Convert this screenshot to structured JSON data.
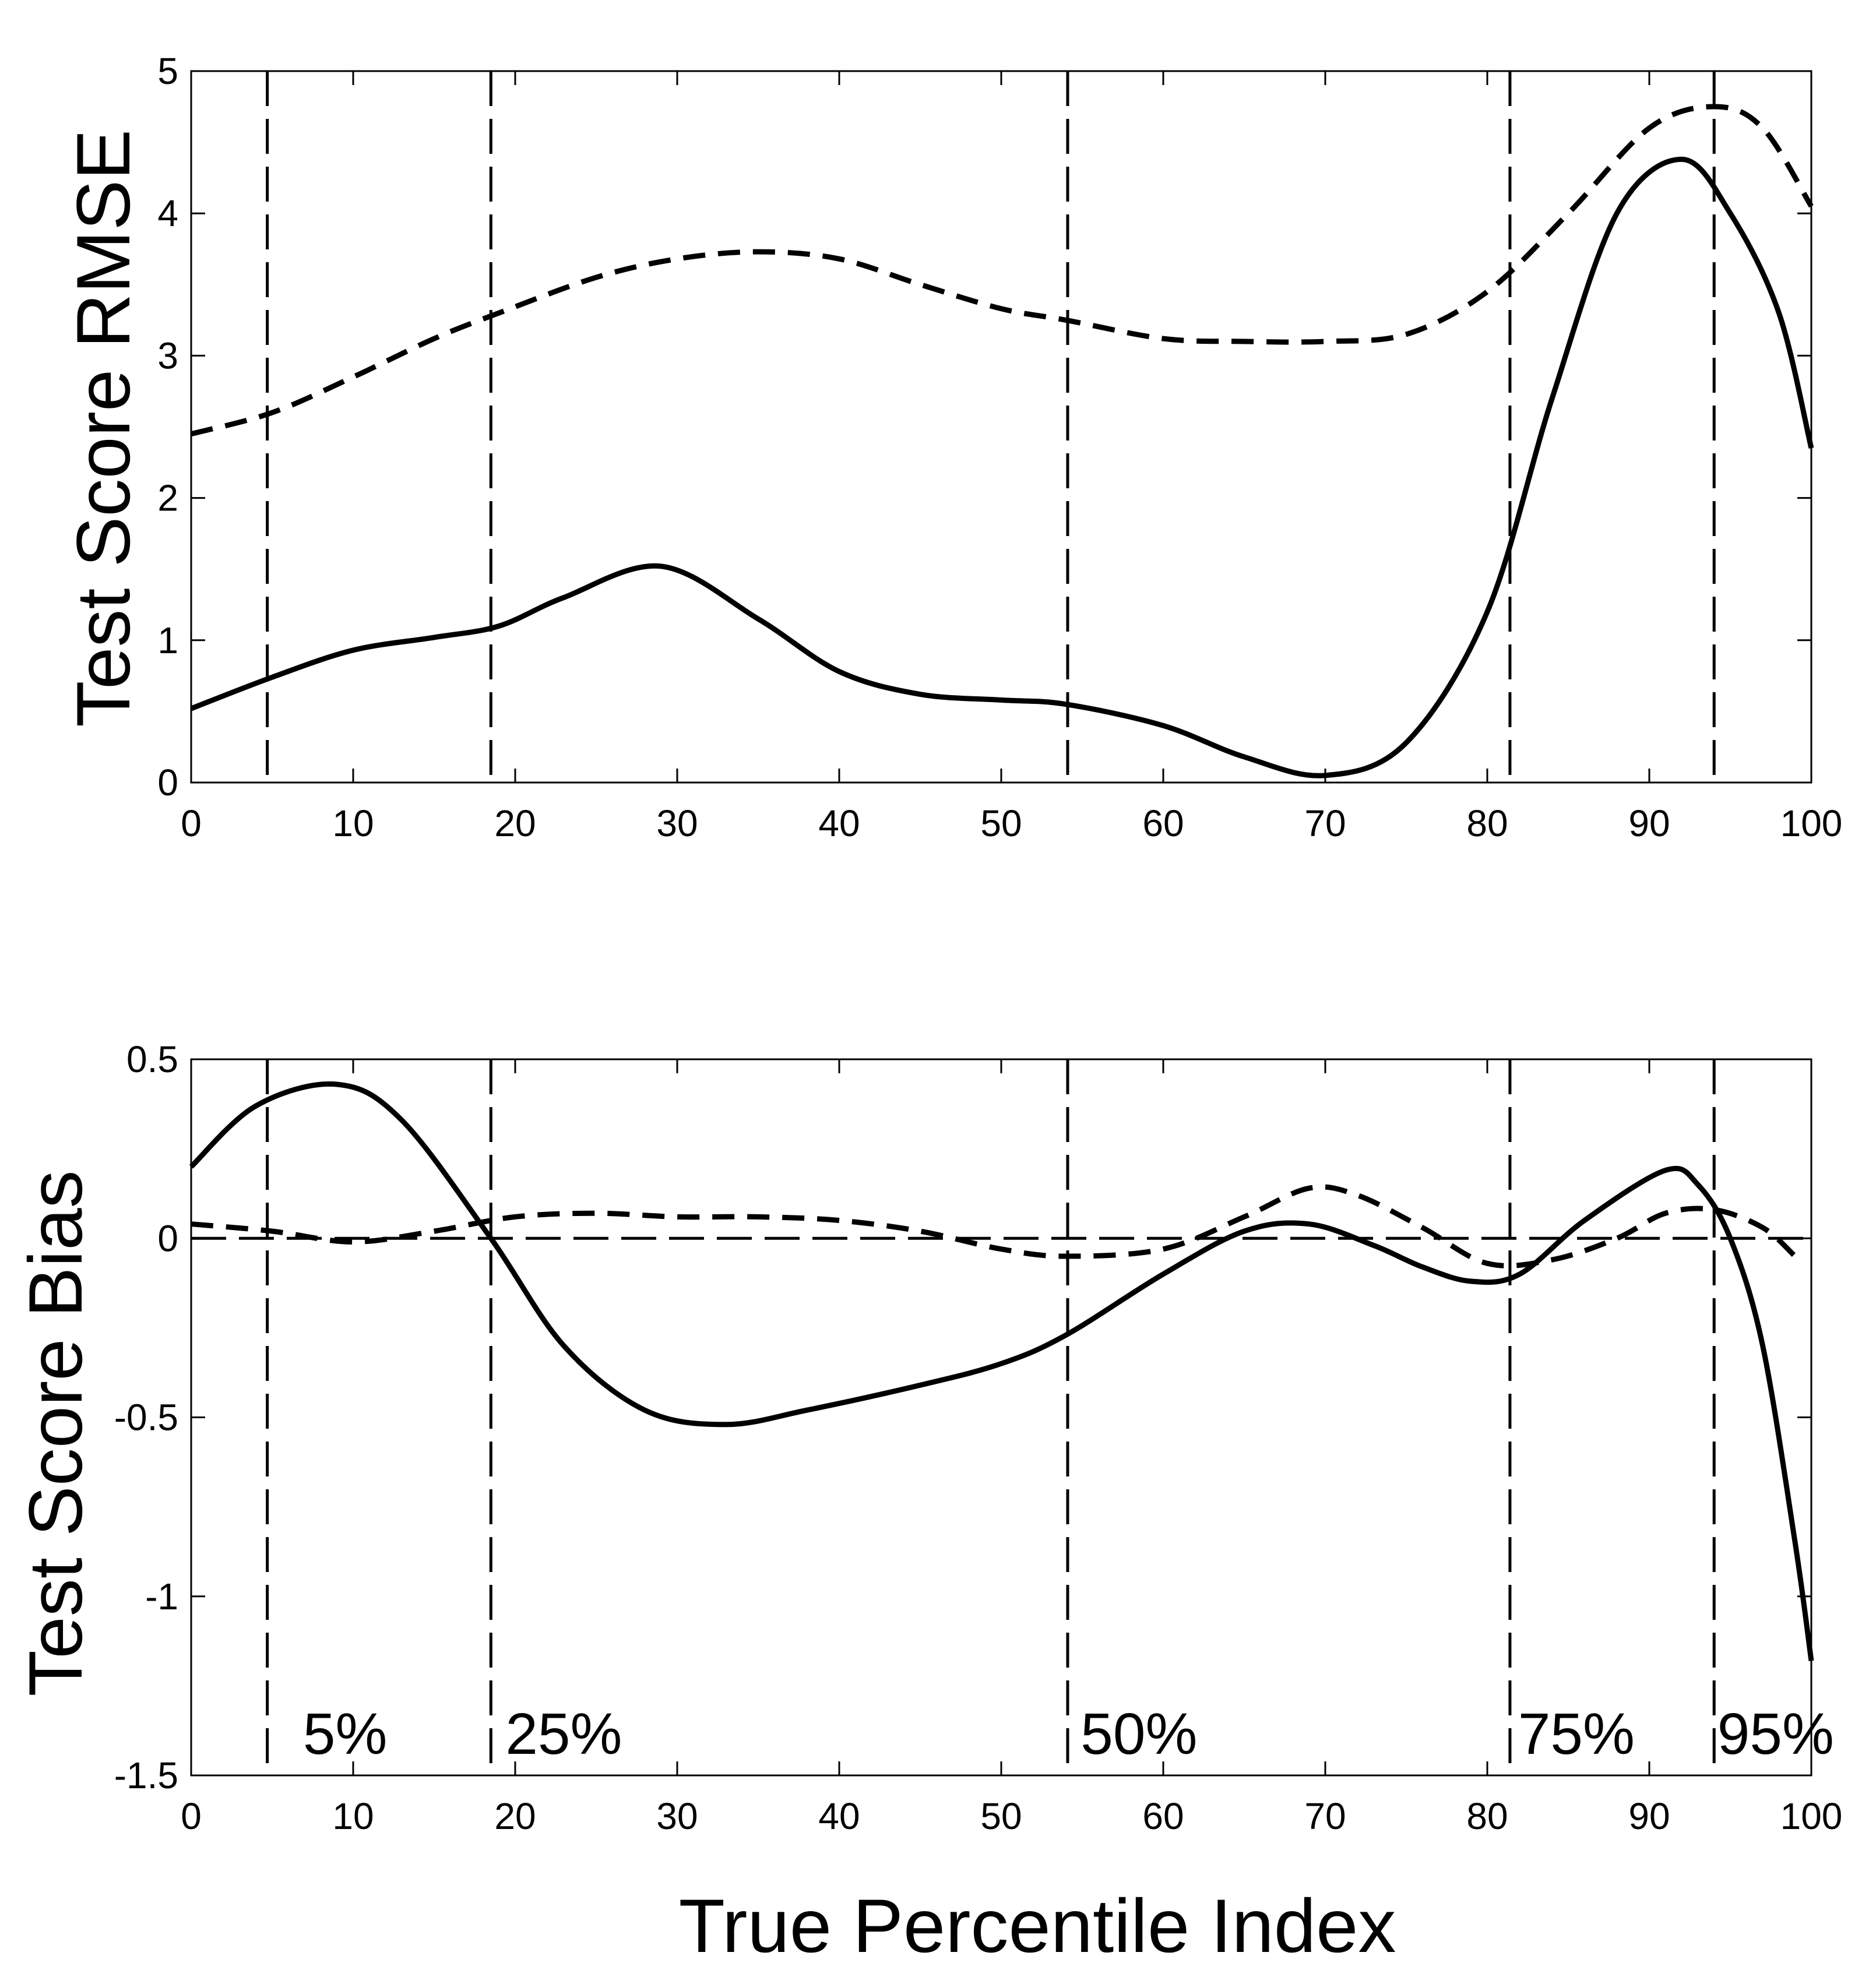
{
  "chart_data": [
    {
      "type": "line",
      "id": "rmse",
      "title": "",
      "xlabel": "",
      "ylabel": "Test Score RMSE",
      "xlim": [
        0,
        100
      ],
      "ylim": [
        0,
        5
      ],
      "xticks": [
        0,
        10,
        20,
        30,
        40,
        50,
        60,
        70,
        80,
        90,
        100
      ],
      "yticks": [
        0,
        1,
        2,
        3,
        4,
        5
      ],
      "xtick_labels": [
        "0",
        "10",
        "20",
        "30",
        "40",
        "50",
        "60",
        "70",
        "80",
        "90",
        "100"
      ],
      "ytick_labels": [
        "0",
        "1",
        "2",
        "3",
        "4",
        "5"
      ],
      "grid": false,
      "series": [
        {
          "name": "solid",
          "style": "solid",
          "x": [
            0,
            5,
            10,
            15,
            19,
            23,
            29,
            35,
            40,
            45,
            50,
            54,
            60,
            65,
            70,
            75,
            80,
            84,
            88,
            92,
            95,
            98,
            100
          ],
          "y": [
            0.52,
            0.74,
            0.93,
            1.02,
            1.1,
            1.3,
            1.52,
            1.15,
            0.78,
            0.62,
            0.58,
            0.55,
            0.4,
            0.18,
            0.05,
            0.28,
            1.2,
            2.7,
            4.0,
            4.38,
            4.0,
            3.3,
            2.35
          ]
        },
        {
          "name": "dashed",
          "style": "dashed",
          "x": [
            0,
            5,
            10,
            15,
            19,
            25,
            30,
            35,
            40,
            45,
            50,
            54,
            60,
            65,
            70,
            75,
            80,
            85,
            90,
            94,
            97,
            100
          ],
          "y": [
            2.45,
            2.6,
            2.85,
            3.12,
            3.3,
            3.55,
            3.68,
            3.73,
            3.68,
            3.5,
            3.33,
            3.25,
            3.12,
            3.1,
            3.1,
            3.15,
            3.45,
            4.0,
            4.6,
            4.75,
            4.6,
            4.05
          ]
        }
      ],
      "vlines": [
        4.7,
        18.5,
        54.1,
        81.4,
        94.0
      ]
    },
    {
      "type": "line",
      "id": "bias",
      "title": "",
      "xlabel": "True Percentile Index",
      "ylabel": "Test Score Bias",
      "xlim": [
        0,
        100
      ],
      "ylim": [
        -1.5,
        0.5
      ],
      "xticks": [
        0,
        10,
        20,
        30,
        40,
        50,
        60,
        70,
        80,
        90,
        100
      ],
      "yticks": [
        -1.5,
        -1,
        -0.5,
        0,
        0.5
      ],
      "xtick_labels": [
        "0",
        "10",
        "20",
        "30",
        "40",
        "50",
        "60",
        "70",
        "80",
        "90",
        "100"
      ],
      "ytick_labels": [
        "-1.5",
        "-1",
        "-0.5",
        "0",
        "0.5"
      ],
      "grid": false,
      "series": [
        {
          "name": "solid",
          "style": "solid",
          "x": [
            0,
            4,
            9,
            13,
            18.5,
            23,
            28,
            33,
            38,
            45,
            50,
            54,
            60,
            65,
            69,
            73,
            76,
            79,
            82,
            86,
            91,
            93,
            95,
            97,
            99,
            100
          ],
          "y": [
            0.2,
            0.37,
            0.43,
            0.33,
            0.0,
            -0.3,
            -0.48,
            -0.52,
            -0.48,
            -0.41,
            -0.35,
            -0.27,
            -0.1,
            0.02,
            0.04,
            -0.02,
            -0.08,
            -0.12,
            -0.1,
            0.05,
            0.19,
            0.15,
            0.0,
            -0.3,
            -0.85,
            -1.18
          ]
        },
        {
          "name": "dashed",
          "style": "dashed",
          "x": [
            0,
            5,
            10,
            15,
            20,
            25,
            30,
            35,
            40,
            45,
            50,
            54,
            60,
            65,
            69,
            72,
            76,
            80,
            84,
            88,
            91,
            94,
            97,
            99
          ],
          "y": [
            0.04,
            0.02,
            -0.01,
            0.02,
            0.06,
            0.07,
            0.06,
            0.06,
            0.05,
            0.02,
            -0.03,
            -0.05,
            -0.03,
            0.06,
            0.14,
            0.12,
            0.03,
            -0.07,
            -0.06,
            0.0,
            0.07,
            0.08,
            0.03,
            -0.05
          ]
        }
      ],
      "hlines": [
        0
      ],
      "vlines": [
        4.7,
        18.5,
        54.1,
        81.4,
        94.0
      ],
      "annotations": [
        {
          "text": "5%",
          "x": 9.5,
          "y": -1.44
        },
        {
          "text": "25%",
          "x": 23.0,
          "y": -1.44
        },
        {
          "text": "50%",
          "x": 58.5,
          "y": -1.44
        },
        {
          "text": "75%",
          "x": 85.5,
          "y": -1.44
        },
        {
          "text": "95%",
          "x": 97.8,
          "y": -1.44
        }
      ]
    }
  ]
}
